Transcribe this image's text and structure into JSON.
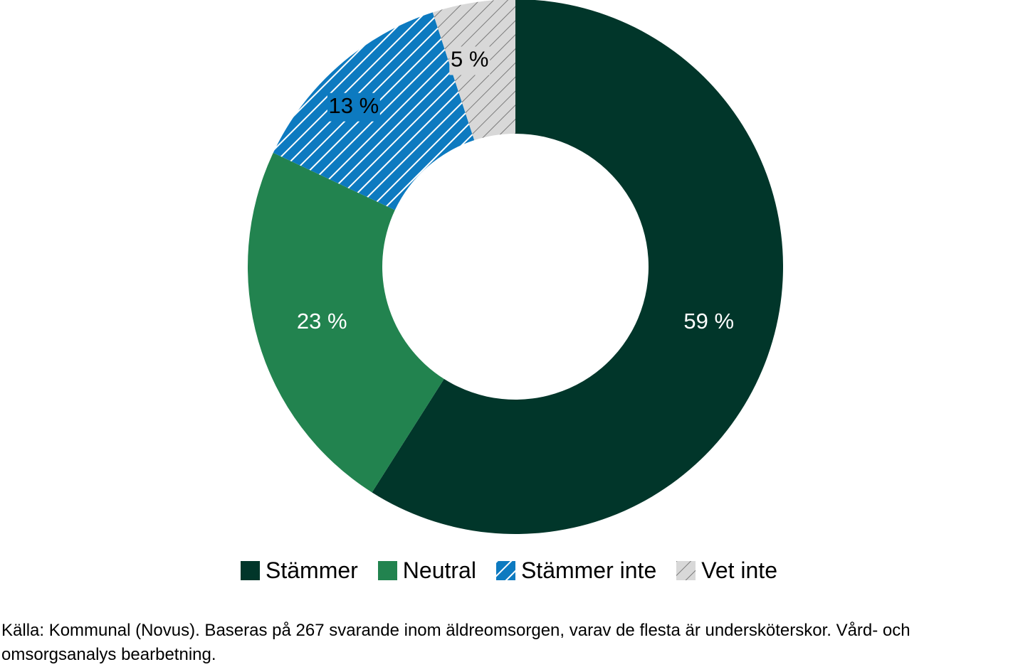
{
  "chart_data": {
    "type": "pie",
    "donut": true,
    "categories": [
      "Stämmer",
      "Neutral",
      "Stämmer inte",
      "Vet inte"
    ],
    "values": [
      59,
      23,
      13,
      5
    ],
    "data_labels": [
      "59 %",
      "23 %",
      "13 %",
      "5 %"
    ],
    "colors": [
      "#01362A",
      "#22834F",
      "#0D7AC0",
      "#D8D8D8"
    ],
    "patterns": [
      "solid",
      "solid",
      "diagonal-hatch-white",
      "diagonal-hatch-gray"
    ],
    "label_colors": [
      "#FFFFFF",
      "#FFFFFF",
      "#000000",
      "#000000"
    ],
    "legend_position": "bottom"
  },
  "source": {
    "line1": "Källa: Kommunal (Novus). Baseras på 267 svarande inom äldreomsorgen, varav de flesta är undersköterskor. Vård- och",
    "line2": "omsorgsanalys bearbetning."
  }
}
